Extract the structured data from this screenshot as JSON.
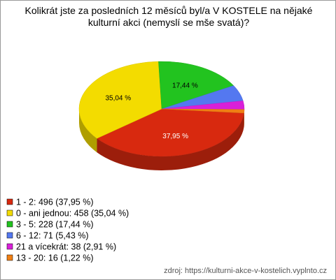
{
  "chart_data": {
    "type": "pie3d",
    "title": "Kolikrát jste za posledních 12 měsíců byl/a V KOSTELE na nějaké kulturní akci (nemyslí se mše svatá)?",
    "categories": [
      "1 - 2",
      "0 - ani jednou",
      "3 - 5",
      "6 - 12",
      "21 a vícekrát",
      "13 - 20"
    ],
    "values": [
      37.95,
      35.04,
      17.44,
      5.43,
      2.91,
      1.22
    ],
    "value_labels": [
      "37,95 %",
      "35,04 %",
      "17,44 %",
      null,
      null,
      null
    ],
    "legend_labels": [
      "1 - 2: 496 (37,95 %)",
      "0 - ani jednou: 458 (35,04 %)",
      "3 - 5: 228 (17,44 %)",
      "6 - 12: 71 (5,43 %)",
      "21 a vícekrát: 38 (2,91 %)",
      "13 - 20: 16 (1,22 %)"
    ],
    "colors": [
      "#d8290f",
      "#f3dc00",
      "#22c31f",
      "#5478f0",
      "#d920d9",
      "#f07f14"
    ],
    "source": "zdroj: https://kulturni-akce-v-kostelich.vyplnto.cz"
  }
}
